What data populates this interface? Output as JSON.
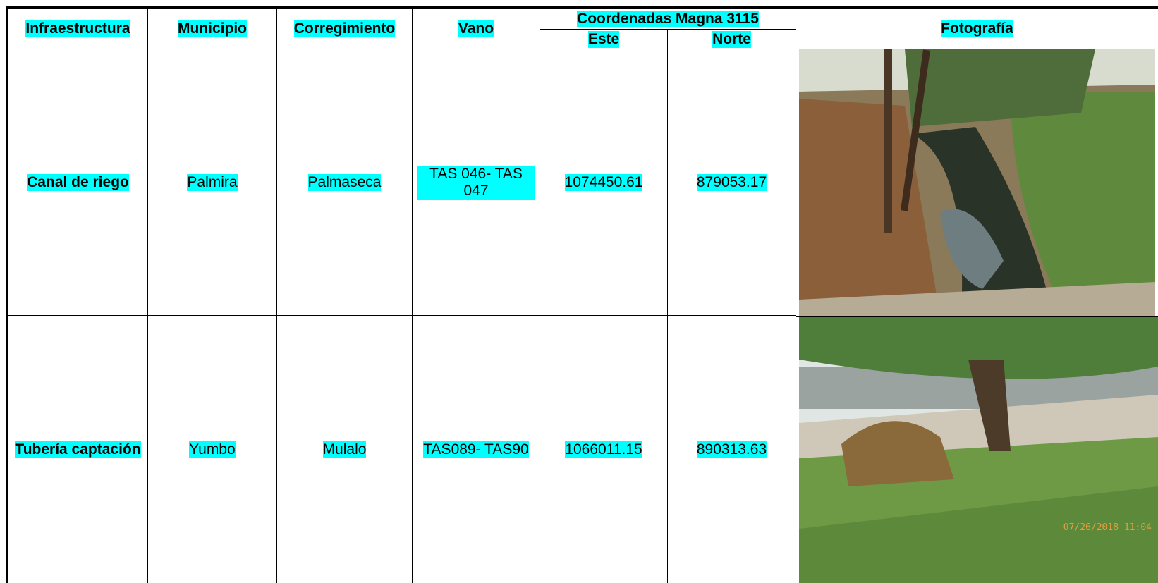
{
  "header": {
    "infraestructura": "Infraestructura",
    "municipio": "Municipio",
    "corregimiento": "Corregimiento",
    "vano": "Vano",
    "coordenadas": "Coordenadas Magna 3115",
    "este": "Este",
    "norte": "Norte",
    "fotografia": "Fotografía"
  },
  "table": {
    "rows": [
      [
        "Canal de riego",
        "Palmira",
        "Palmaseca",
        "TAS 046- TAS 047",
        "1074450.61",
        "879053.17"
      ],
      [
        "Tubería captación",
        "Yumbo",
        "Mulalo",
        "TAS089- TAS90",
        "1066011.15",
        "890313.63"
      ]
    ]
  },
  "photo_stamp": "07/26/2018 11:04"
}
